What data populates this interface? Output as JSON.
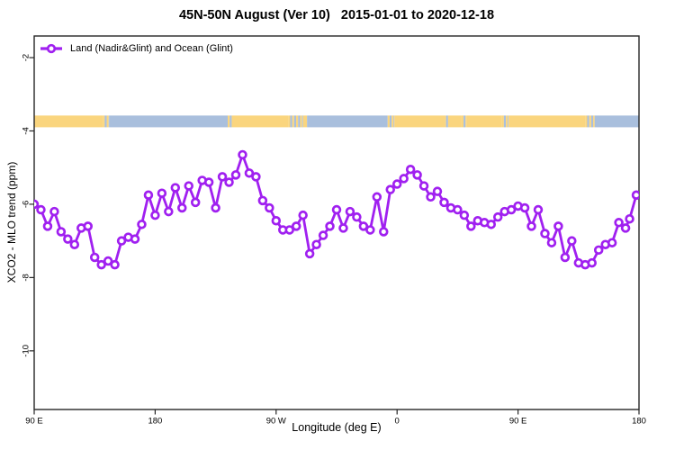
{
  "title": "45N-50N August (Ver 10)   2015-01-01 to 2020-12-18",
  "legend": {
    "label": "Land (Nadir&Glint) and Ocean (Glint)",
    "marker": "open-circle-on-line"
  },
  "x_axis": {
    "label": "Longitude (deg E)",
    "ticks": [
      {
        "value": 90,
        "label": "90 E"
      },
      {
        "value": 180,
        "label": "180"
      },
      {
        "value": 270,
        "label": "90 W"
      },
      {
        "value": 360,
        "label": "0"
      },
      {
        "value": 450,
        "label": "90 E"
      },
      {
        "value": 540,
        "label": "180"
      }
    ]
  },
  "y_axis": {
    "label": "XCO2 - MLO trend (ppm)",
    "ticks": [
      {
        "value": -2,
        "label": "-2"
      },
      {
        "value": -4,
        "label": "-4"
      },
      {
        "value": -6,
        "label": "-6"
      },
      {
        "value": -8,
        "label": "-8"
      },
      {
        "value": -10,
        "label": "-10"
      }
    ]
  },
  "colors": {
    "series": "#A020F0",
    "marker_fill": "#FFFFFF",
    "land": "#FAD57E",
    "ocean": "#A9BFDD",
    "axis": "#262626",
    "text": "#000000",
    "background": "#FFFFFF"
  },
  "chart_data": {
    "type": "line",
    "title": "45N-50N August (Ver 10)   2015-01-01 to 2020-12-18",
    "xlabel": "Longitude (deg E)",
    "ylabel": "XCO2 - MLO trend (ppm)",
    "xlim": [
      90,
      540
    ],
    "ylim": [
      -11.6,
      -1.41
    ],
    "grid": false,
    "legend_position": "top-left",
    "series": [
      {
        "name": "Land (Nadir&Glint) and Ocean (Glint)",
        "color": "#A020F0",
        "marker": "open-circle",
        "x": [
          90,
          95,
          100,
          105,
          110,
          115,
          120,
          125,
          130,
          135,
          140,
          145,
          150,
          155,
          160,
          165,
          170,
          175,
          180,
          185,
          190,
          195,
          200,
          205,
          210,
          215,
          220,
          225,
          230,
          235,
          240,
          245,
          250,
          255,
          260,
          265,
          270,
          275,
          280,
          285,
          290,
          295,
          300,
          305,
          310,
          315,
          320,
          325,
          330,
          335,
          340,
          345,
          350,
          355,
          360,
          365,
          370,
          375,
          380,
          385,
          390,
          395,
          400,
          405,
          410,
          415,
          420,
          425,
          430,
          435,
          440,
          445,
          450,
          455,
          460,
          465,
          470,
          475,
          480,
          485,
          490,
          495,
          500,
          505,
          510,
          515,
          520,
          525,
          530,
          533,
          538
        ],
        "y": [
          -6.0,
          -6.15,
          -6.6,
          -6.2,
          -6.75,
          -6.95,
          -7.1,
          -6.65,
          -6.6,
          -7.45,
          -7.65,
          -7.55,
          -7.65,
          -7.0,
          -6.9,
          -6.95,
          -6.55,
          -5.75,
          -6.3,
          -5.7,
          -6.2,
          -5.55,
          -6.1,
          -5.5,
          -5.95,
          -5.35,
          -5.4,
          -6.1,
          -5.25,
          -5.4,
          -5.2,
          -4.65,
          -5.15,
          -5.25,
          -5.9,
          -6.1,
          -6.45,
          -6.7,
          -6.7,
          -6.6,
          -6.3,
          -7.35,
          -7.1,
          -6.85,
          -6.6,
          -6.15,
          -6.65,
          -6.2,
          -6.35,
          -6.6,
          -6.7,
          -5.8,
          -6.75,
          -5.6,
          -5.45,
          -5.3,
          -5.05,
          -5.2,
          -5.5,
          -5.8,
          -5.65,
          -5.95,
          -6.1,
          -6.15,
          -6.3,
          -6.6,
          -6.45,
          -6.5,
          -6.55,
          -6.35,
          -6.2,
          -6.15,
          -6.05,
          -6.1,
          -6.6,
          -6.15,
          -6.8,
          -7.05,
          -6.6,
          -7.45,
          -7.0,
          -7.6,
          -7.65,
          -7.6,
          -7.25,
          -7.1,
          -7.05,
          -6.5,
          -6.65,
          -6.4,
          -5.75
        ]
      }
    ],
    "surface_strip": {
      "band_ppm": [
        -3.58,
        -3.9
      ],
      "segments": [
        {
          "from": 90,
          "to": 141,
          "type": "land"
        },
        {
          "from": 141,
          "to": 146,
          "type": "mix"
        },
        {
          "from": 146,
          "to": 234,
          "type": "ocean"
        },
        {
          "from": 234,
          "to": 237,
          "type": "mix"
        },
        {
          "from": 237,
          "to": 279,
          "type": "land"
        },
        {
          "from": 279,
          "to": 290,
          "type": "mix"
        },
        {
          "from": 290,
          "to": 293,
          "type": "land"
        },
        {
          "from": 293,
          "to": 353,
          "type": "ocean"
        },
        {
          "from": 353,
          "to": 358,
          "type": "mix"
        },
        {
          "from": 358,
          "to": 395,
          "type": "land"
        },
        {
          "from": 395,
          "to": 398,
          "type": "mix"
        },
        {
          "from": 398,
          "to": 408,
          "type": "land"
        },
        {
          "from": 408,
          "to": 412,
          "type": "mix"
        },
        {
          "from": 412,
          "to": 438,
          "type": "land"
        },
        {
          "from": 438,
          "to": 443,
          "type": "mix"
        },
        {
          "from": 443,
          "to": 500,
          "type": "land"
        },
        {
          "from": 500,
          "to": 507,
          "type": "mix"
        },
        {
          "from": 507,
          "to": 540,
          "type": "ocean"
        }
      ]
    }
  }
}
